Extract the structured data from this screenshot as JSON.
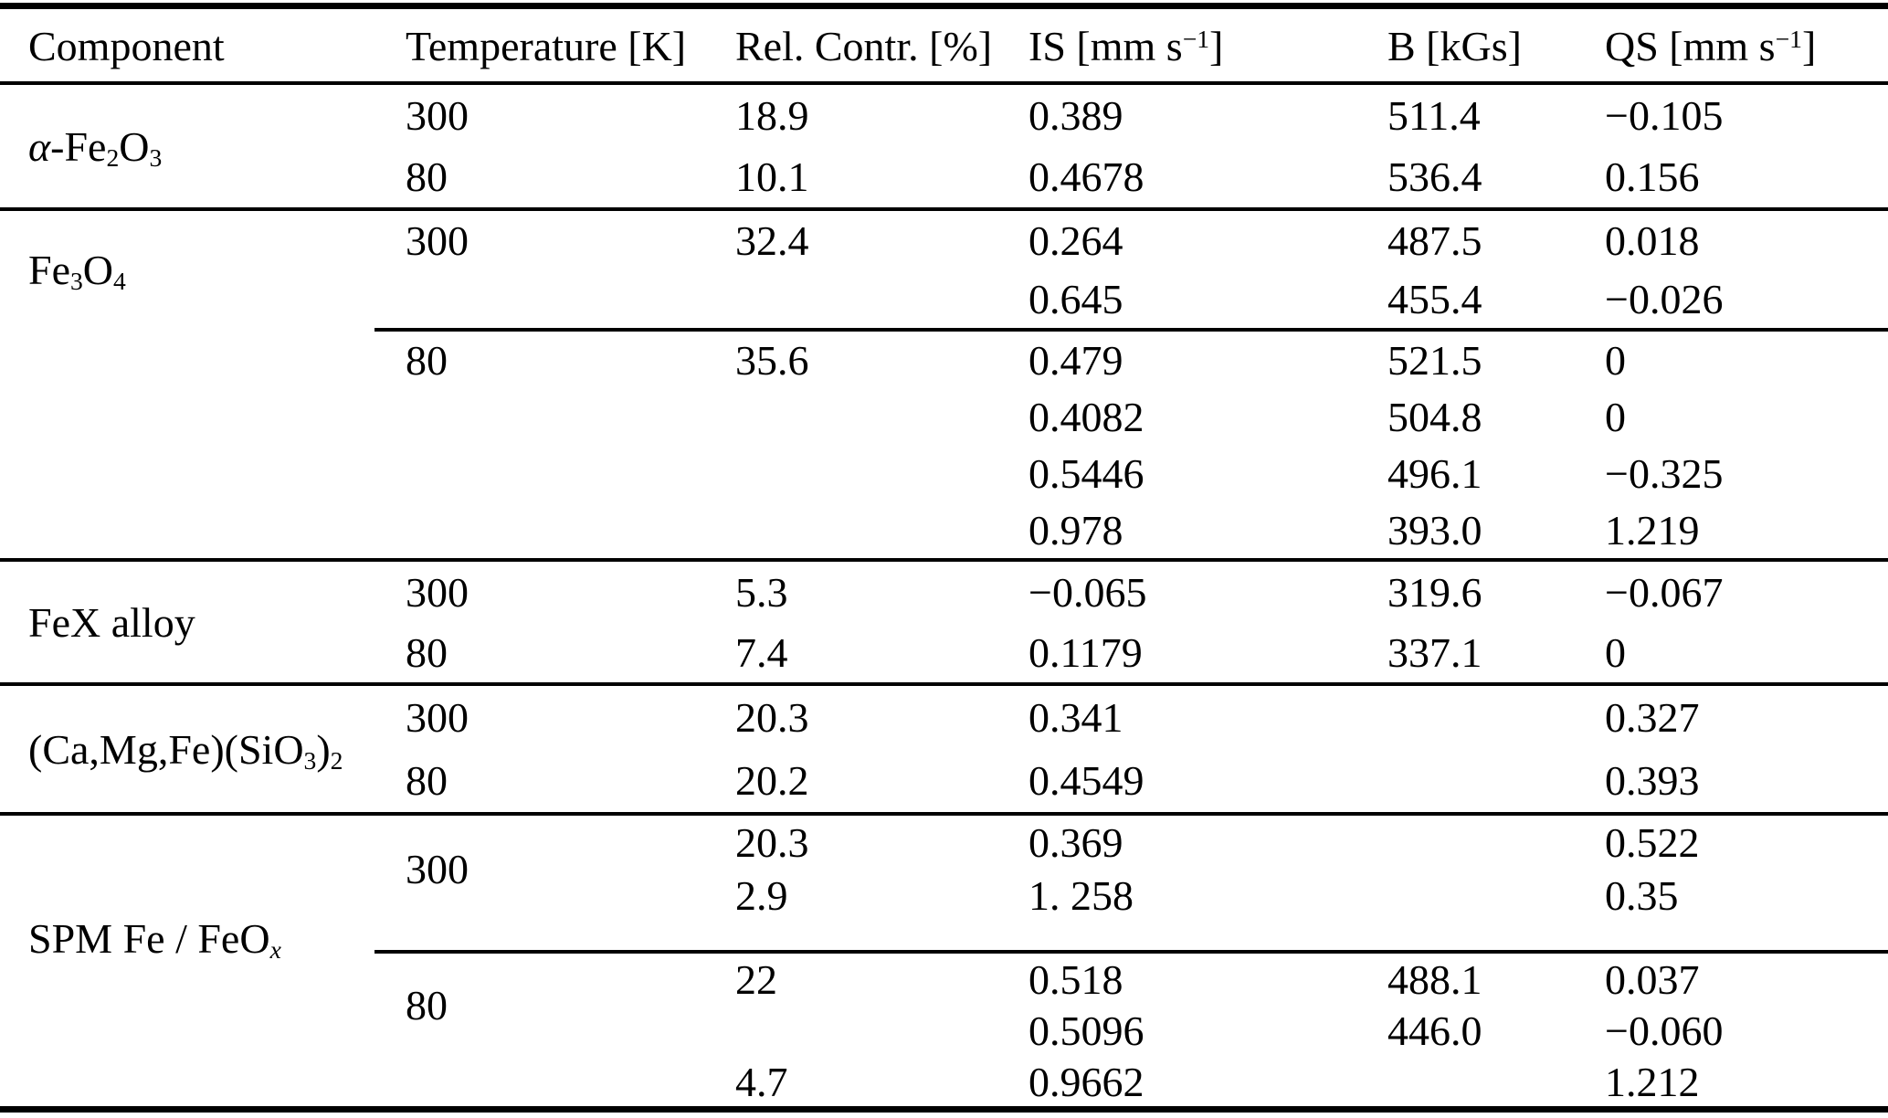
{
  "table": {
    "headers": {
      "component": "Component",
      "temperature": "Temperature [K]",
      "rel_contr": "Rel. Contr. [%]",
      "is": [
        {
          "t": "IS [mm s"
        },
        {
          "sup": "−1"
        },
        {
          "t": "]"
        }
      ],
      "b": "B [kGs]",
      "qs": [
        {
          "t": "QS [mm s"
        },
        {
          "sup": "−1"
        },
        {
          "t": "]"
        }
      ]
    },
    "sections": [
      {
        "name": "alpha-Fe2O3",
        "component": [
          {
            "i": "α"
          },
          {
            "t": "-Fe"
          },
          {
            "sub": "2"
          },
          {
            "t": "O"
          },
          {
            "sub": "3"
          }
        ],
        "rows": [
          {
            "temp": "300",
            "rel": "18.9",
            "is": "0.389",
            "b": "511.4",
            "qs": "−0.105"
          },
          {
            "temp": "80",
            "rel": "10.1",
            "is": "0.4678",
            "b": "536.4",
            "qs": "0.156"
          }
        ]
      },
      {
        "name": "Fe3O4",
        "component": [
          {
            "t": "Fe"
          },
          {
            "sub": "3"
          },
          {
            "t": "O"
          },
          {
            "sub": "4"
          }
        ],
        "block300": {
          "temp": "300",
          "rows": [
            {
              "rel": "32.4",
              "is": "0.264",
              "b": "487.5",
              "qs": "0.018"
            },
            {
              "is": "0.645",
              "b": "455.4",
              "qs": "−0.026"
            }
          ]
        },
        "block80": {
          "temp": "80",
          "rows": [
            {
              "rel": "35.6",
              "is": "0.479",
              "b": "521.5",
              "qs": "0"
            },
            {
              "is": "0.4082",
              "b": "504.8",
              "qs": "0"
            },
            {
              "is": "0.5446",
              "b": "496.1",
              "qs": "−0.325"
            },
            {
              "is": "0.978",
              "b": "393.0",
              "qs": "1.219"
            }
          ]
        }
      },
      {
        "name": "FeX-alloy",
        "component": [
          {
            "t": "FeX alloy"
          }
        ],
        "rows": [
          {
            "temp": "300",
            "rel": "5.3",
            "is": "−0.065",
            "b": "319.6",
            "qs": "−0.067"
          },
          {
            "temp": "80",
            "rel": "7.4",
            "is": "0.1179",
            "b": "337.1",
            "qs": "0"
          }
        ]
      },
      {
        "name": "Ca-Mg-Fe-SiO3-2",
        "component": [
          {
            "t": "(Ca,Mg,Fe)(SiO"
          },
          {
            "sub": "3"
          },
          {
            "t": ")"
          },
          {
            "sub": "2"
          }
        ],
        "rows": [
          {
            "temp": "300",
            "rel": "20.3",
            "is": "0.341",
            "qs": "0.327"
          },
          {
            "temp": "80",
            "rel": "20.2",
            "is": "0.4549",
            "qs": "0.393"
          }
        ]
      },
      {
        "name": "SPM-Fe-FeOx",
        "component": [
          {
            "t": "SPM Fe / FeO"
          },
          {
            "subi": "x"
          }
        ],
        "block300": {
          "temp": "300",
          "rows": [
            {
              "rel": "20.3",
              "is": "0.369",
              "qs": "0.522"
            },
            {
              "rel": "2.9",
              "is": "1. 258",
              "qs": "0.35"
            }
          ]
        },
        "block80": {
          "temp": "80",
          "rows": [
            {
              "rel": "22",
              "is": "0.518",
              "b": "488.1",
              "qs": "0.037"
            },
            {
              "is": "0.5096",
              "b": "446.0",
              "qs": "−0.060"
            },
            {
              "rel": "4.7",
              "is": "0.9662",
              "qs": "1.212"
            }
          ]
        }
      }
    ]
  }
}
